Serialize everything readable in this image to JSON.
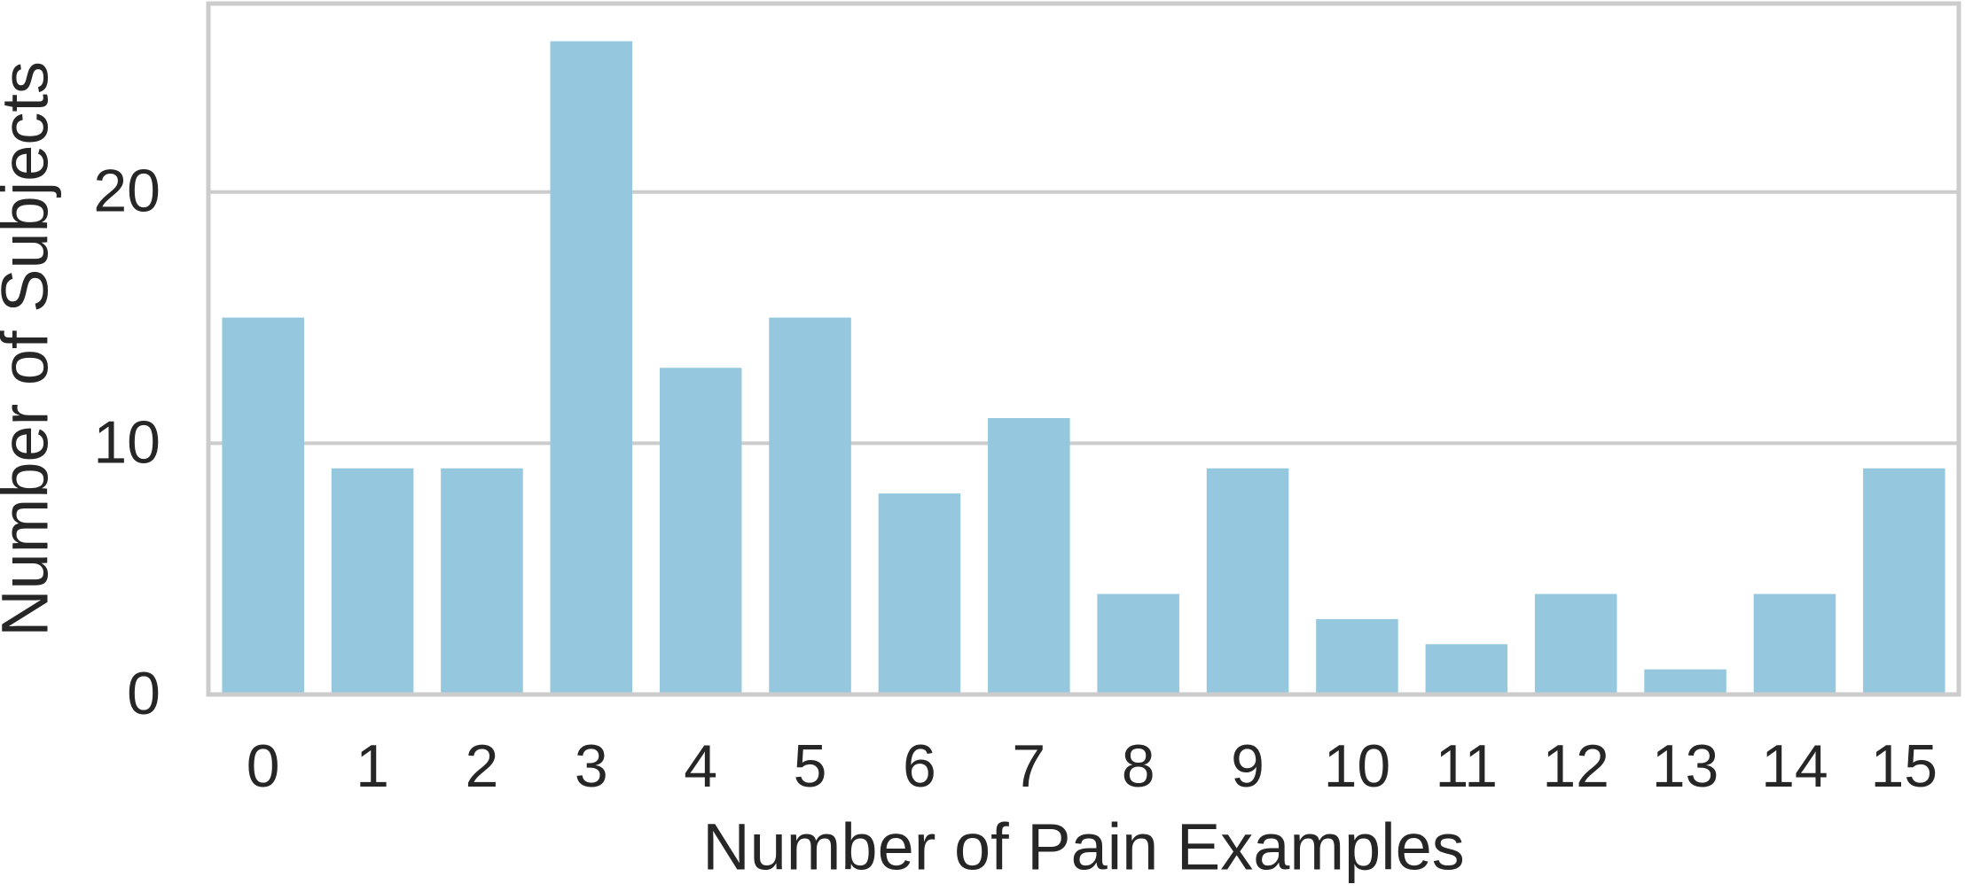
{
  "chart_data": {
    "type": "bar",
    "xlabel": "Number of Pain Examples",
    "ylabel": "Number of Subjects",
    "categories": [
      "0",
      "1",
      "2",
      "3",
      "4",
      "5",
      "6",
      "7",
      "8",
      "9",
      "10",
      "11",
      "12",
      "13",
      "14",
      "15"
    ],
    "values": [
      15,
      9,
      9,
      26,
      13,
      15,
      8,
      11,
      4,
      9,
      3,
      2,
      4,
      1,
      4,
      9
    ],
    "color": "#95c8de",
    "ylim": [
      0,
      27.5
    ],
    "yticks": [
      0,
      10,
      20
    ],
    "grid": true
  }
}
